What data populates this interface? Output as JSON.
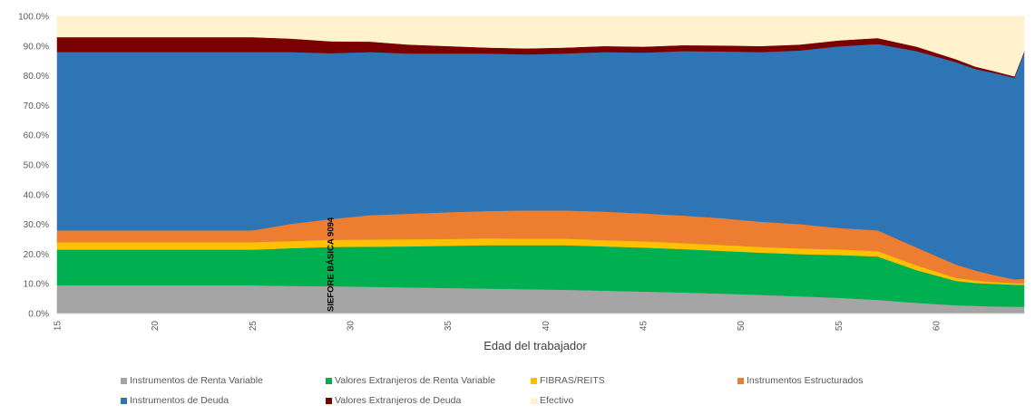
{
  "chart_data": {
    "type": "area",
    "stacked": true,
    "title": "",
    "xlabel": "Edad del trabajador",
    "ylabel": "",
    "xlim": [
      15,
      64.5
    ],
    "ylim": [
      0,
      100
    ],
    "y_ticks": [
      "0.0%",
      "10.0%",
      "20.0%",
      "30.0%",
      "40.0%",
      "50.0%",
      "60.0%",
      "70.0%",
      "80.0%",
      "90.0%",
      "100.0%"
    ],
    "x_ticks": [
      "15",
      "20",
      "25",
      "30",
      "35",
      "40",
      "45",
      "50",
      "55",
      "60"
    ],
    "grid": true,
    "legend_position": "bottom",
    "annotation": "SIEFORE BÁSICA 9094",
    "annotation_x": 29,
    "x": [
      15,
      25,
      27,
      29,
      31,
      33,
      35,
      37,
      39,
      41,
      43,
      45,
      47,
      49,
      51,
      53,
      55,
      57,
      59,
      61,
      62,
      63,
      64,
      64.5
    ],
    "series": [
      {
        "name": "Instrumentos de Renta Variable",
        "color": "#a5a5a5",
        "values": [
          9.5,
          9.5,
          9.3,
          9.2,
          9.0,
          8.8,
          8.6,
          8.4,
          8.2,
          8.0,
          7.7,
          7.4,
          7.1,
          6.7,
          6.3,
          5.8,
          5.3,
          4.6,
          3.6,
          2.8,
          2.6,
          2.4,
          2.3,
          2.3
        ]
      },
      {
        "name": "Valores Extranjeros de Renta Variable",
        "color": "#00b050",
        "values": [
          12.0,
          12.0,
          12.7,
          13.2,
          13.5,
          13.8,
          14.2,
          14.6,
          14.8,
          15.0,
          14.9,
          14.8,
          14.6,
          14.4,
          14.2,
          14.2,
          14.4,
          14.6,
          11.0,
          8.2,
          7.7,
          7.6,
          7.4,
          7.4
        ]
      },
      {
        "name": "FIBRAS/REITS",
        "color": "#ffc000",
        "values": [
          2.5,
          2.5,
          2.4,
          2.4,
          2.4,
          2.4,
          2.3,
          2.3,
          2.2,
          2.2,
          2.1,
          2.1,
          2.0,
          2.0,
          1.9,
          1.9,
          1.9,
          1.8,
          1.6,
          1.0,
          0.8,
          0.6,
          0.5,
          0.5
        ]
      },
      {
        "name": "Instrumentos Estructurados",
        "color": "#ed7d31",
        "values": [
          4.0,
          4.0,
          5.8,
          7.0,
          8.2,
          8.6,
          9.0,
          9.2,
          9.5,
          9.5,
          9.6,
          9.4,
          9.3,
          9.0,
          8.5,
          8.2,
          7.2,
          7.0,
          6.0,
          4.5,
          3.4,
          2.3,
          1.3,
          1.5
        ]
      },
      {
        "name": "Instrumentos de Deuda",
        "color": "#2e75b6",
        "values": [
          60.0,
          60.0,
          57.8,
          55.8,
          54.9,
          53.9,
          53.4,
          53.0,
          52.5,
          52.8,
          53.7,
          54.1,
          55.3,
          56.1,
          57.1,
          58.4,
          61.1,
          62.7,
          66.1,
          68.1,
          67.8,
          68.0,
          67.8,
          76.0
        ]
      },
      {
        "name": "Valores Extranjeros de Deuda",
        "color": "#7b0000",
        "values": [
          5.0,
          5.0,
          4.5,
          4.0,
          3.5,
          3.0,
          2.5,
          2.0,
          2.0,
          2.0,
          2.0,
          2.0,
          2.0,
          2.0,
          2.0,
          2.0,
          2.0,
          2.0,
          1.5,
          1.0,
          0.8,
          0.6,
          0.5,
          0.5
        ]
      },
      {
        "name": "Efectivo",
        "color": "#fff2cc",
        "values": [
          7.0,
          7.0,
          7.5,
          8.4,
          8.5,
          9.5,
          10.0,
          10.5,
          10.8,
          10.5,
          10.0,
          10.2,
          9.7,
          9.8,
          10.0,
          9.5,
          8.1,
          7.3,
          10.2,
          14.4,
          16.9,
          18.5,
          20.2,
          11.8
        ]
      }
    ]
  }
}
